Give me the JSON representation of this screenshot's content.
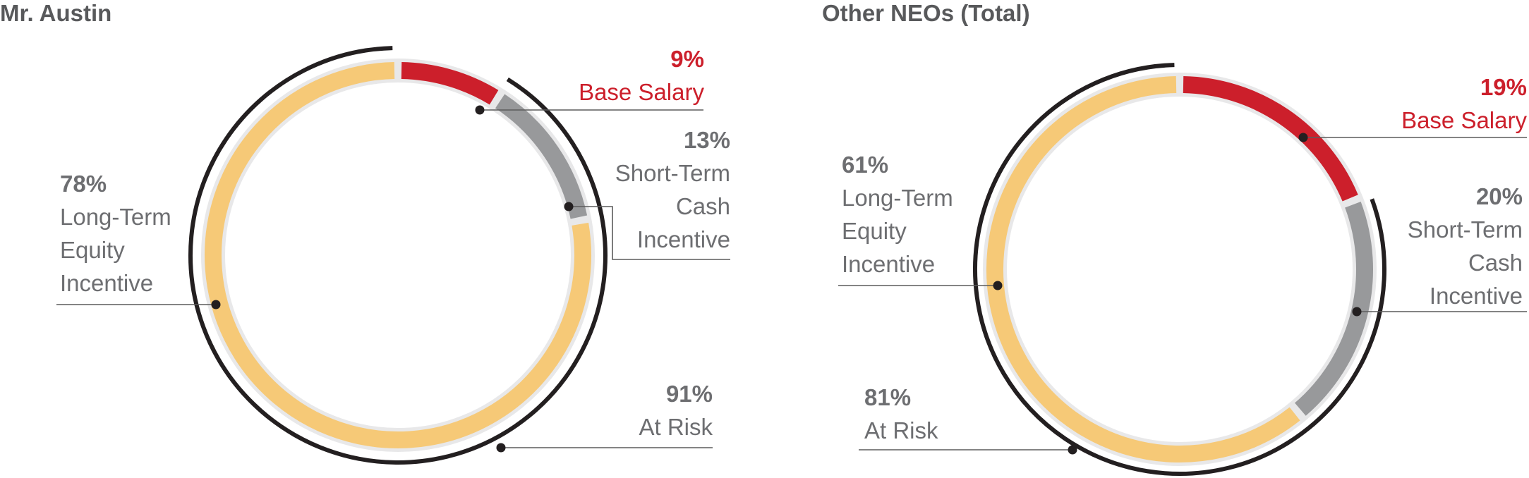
{
  "colors": {
    "base_salary": "#cc1f2b",
    "short_term": "#98999b",
    "long_term": "#f6c977",
    "track": "#e8e8e9",
    "at_risk_arc": "#231f20",
    "text": "#6d6e71",
    "leader": "#5c5c5c"
  },
  "chart_data": [
    {
      "type": "donut",
      "title": "Mr. Austin",
      "categories": [
        "Base Salary",
        "Short-Term Cash Incentive",
        "Long-Term Equity Incentive"
      ],
      "values": [
        9,
        13,
        78
      ],
      "at_risk": 91,
      "labels": {
        "base": {
          "pct": "9%",
          "lines": [
            "Base Salary"
          ]
        },
        "short": {
          "pct": "13%",
          "lines": [
            "Short-Term",
            "Cash",
            "Incentive"
          ]
        },
        "long": {
          "pct": "78%",
          "lines": [
            "Long-Term",
            "Equity",
            "Incentive"
          ]
        },
        "risk": {
          "pct": "91%",
          "lines": [
            "At Risk"
          ]
        }
      }
    },
    {
      "type": "donut",
      "title": "Other NEOs (Total)",
      "categories": [
        "Base Salary",
        "Short-Term Cash Incentive",
        "Long-Term Equity Incentive"
      ],
      "values": [
        19,
        20,
        61
      ],
      "at_risk": 81,
      "labels": {
        "base": {
          "pct": "19%",
          "lines": [
            "Base Salary"
          ]
        },
        "short": {
          "pct": "20%",
          "lines": [
            "Short-Term",
            "Cash",
            "Incentive"
          ]
        },
        "long": {
          "pct": "61%",
          "lines": [
            "Long-Term",
            "Equity",
            "Incentive"
          ]
        },
        "risk": {
          "pct": "81%",
          "lines": [
            "At Risk"
          ]
        }
      }
    }
  ]
}
